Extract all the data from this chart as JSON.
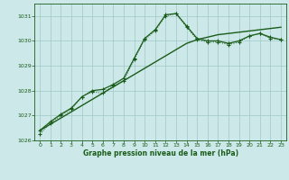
{
  "title": "Graphe pression niveau de la mer (hPa)",
  "xlim": [
    -0.5,
    23.5
  ],
  "ylim": [
    1026,
    1031.5
  ],
  "yticks": [
    1026,
    1027,
    1028,
    1029,
    1030,
    1031
  ],
  "xticks": [
    0,
    1,
    2,
    3,
    4,
    5,
    6,
    7,
    8,
    9,
    10,
    11,
    12,
    13,
    14,
    15,
    16,
    17,
    18,
    19,
    20,
    21,
    22,
    23
  ],
  "bg_color": "#cce8e8",
  "grid_color": "#a0c8c8",
  "line_color": "#1a5c1a",
  "s1_y": [
    1026.4,
    1026.65,
    1026.9,
    1027.15,
    1027.4,
    1027.65,
    1027.9,
    1028.15,
    1028.4,
    1028.65,
    1028.9,
    1029.15,
    1029.4,
    1029.65,
    1029.9,
    1030.05,
    1030.15,
    1030.25,
    1030.3,
    1030.35,
    1030.4,
    1030.45,
    1030.5,
    1030.55
  ],
  "s2_y": [
    1026.25,
    1026.7,
    1027.0,
    1027.25,
    1027.75,
    1027.95,
    1027.9,
    1028.2,
    1028.4,
    1029.25,
    1030.05,
    1030.4,
    1031.0,
    1031.1,
    1030.55,
    1030.05,
    1029.95,
    1029.95,
    1029.85,
    1029.95,
    1030.2,
    1030.3,
    1030.1,
    1030.05
  ],
  "s3_y": [
    1026.4,
    1026.75,
    1027.05,
    1027.3,
    1027.75,
    1028.0,
    1028.05,
    1028.25,
    1028.5,
    1029.3,
    1030.1,
    1030.45,
    1031.05,
    1031.1,
    1030.6,
    1030.1,
    1030.0,
    1030.0,
    1029.9,
    1030.0,
    1030.2,
    1030.3,
    1030.15,
    1030.05
  ]
}
